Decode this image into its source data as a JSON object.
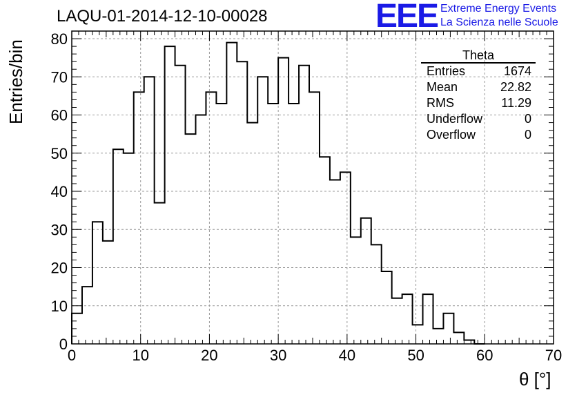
{
  "title": "LAQU-01-2014-12-10-00028",
  "logo": {
    "mark": "EEE",
    "line1": "Extreme Energy Events",
    "line2": "La Scienza nelle Scuole",
    "color": "#1a1ae6"
  },
  "stats_box": {
    "name": "Theta",
    "rows": [
      {
        "label": "Entries",
        "value": "1674"
      },
      {
        "label": "Mean",
        "value": "22.82"
      },
      {
        "label": "RMS",
        "value": "11.29"
      },
      {
        "label": "Underflow",
        "value": "0"
      },
      {
        "label": "Overflow",
        "value": "0"
      }
    ]
  },
  "chart_data": {
    "type": "bar",
    "style": "step-histogram",
    "title": "LAQU-01-2014-12-10-00028",
    "xlabel": "θ [°]",
    "ylabel": "Entries/bin",
    "xlim": [
      0,
      70
    ],
    "ylim": [
      0,
      82
    ],
    "grid": true,
    "bin_width": 1.5,
    "x_ticks": [
      0,
      10,
      20,
      30,
      40,
      50,
      60,
      70
    ],
    "y_ticks": [
      0,
      10,
      20,
      30,
      40,
      50,
      60,
      70,
      80
    ],
    "bin_edges_start": 0,
    "values": [
      8,
      15,
      32,
      27,
      51,
      50,
      66,
      70,
      37,
      78,
      73,
      55,
      60,
      66,
      63,
      79,
      74,
      58,
      70,
      63,
      75,
      63,
      73,
      66,
      49,
      43,
      45,
      28,
      33,
      26,
      19,
      12,
      13,
      5,
      13,
      4,
      8,
      3,
      1,
      0
    ]
  }
}
